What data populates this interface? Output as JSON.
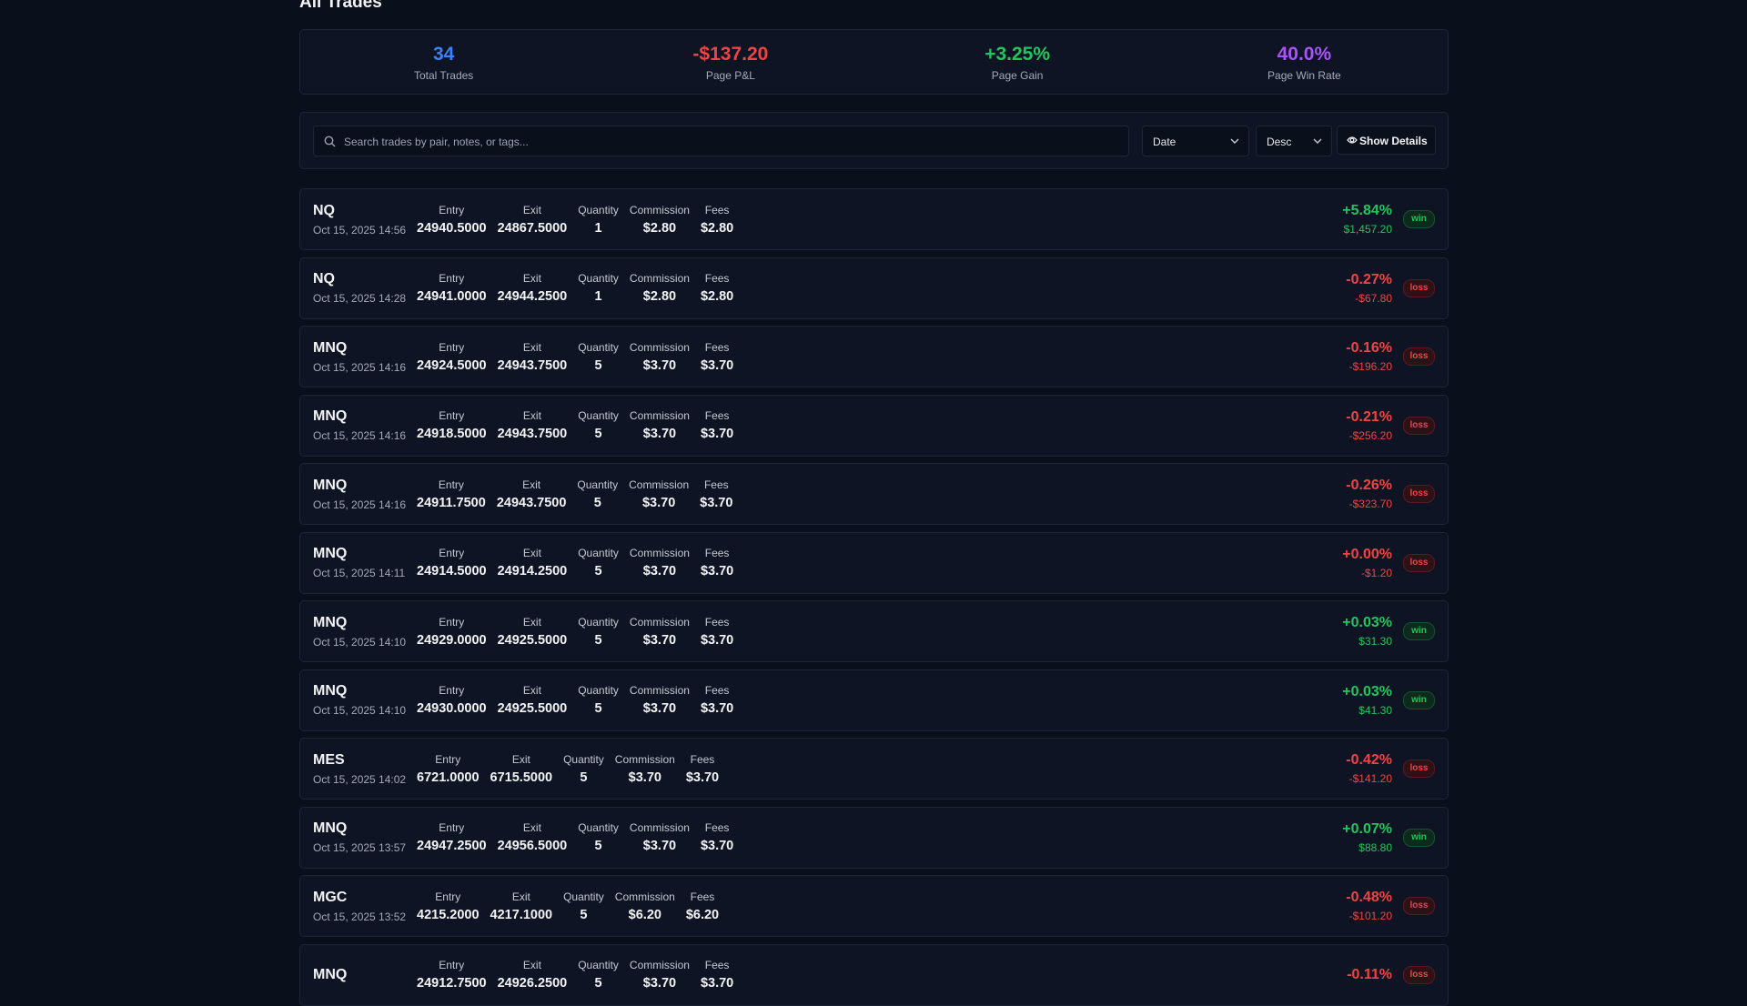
{
  "header": {
    "title": "All Trades"
  },
  "stats": [
    {
      "value": "34",
      "label": "Total Trades"
    },
    {
      "value": "-$137.20",
      "label": "Page P&L"
    },
    {
      "value": "+3.25%",
      "label": "Page Gain"
    },
    {
      "value": "40.0%",
      "label": "Page Win Rate"
    }
  ],
  "toolbar": {
    "search_placeholder": "Search trades by pair, notes, or tags...",
    "sort_field": "Date",
    "sort_order": "Desc",
    "details_button": "Show Details"
  },
  "columns": {
    "entry": "Entry",
    "exit": "Exit",
    "quantity": "Quantity",
    "commission": "Commission",
    "fees": "Fees"
  },
  "trades": [
    {
      "symbol": "NQ",
      "date": "Oct 15, 2025 14:56",
      "entry": "24940.5000",
      "exit": "24867.5000",
      "quantity": "1",
      "commission": "$2.80",
      "fees": "$2.80",
      "pct": "+5.84%",
      "pnl": "$1,457.20",
      "result": "win"
    },
    {
      "symbol": "NQ",
      "date": "Oct 15, 2025 14:28",
      "entry": "24941.0000",
      "exit": "24944.2500",
      "quantity": "1",
      "commission": "$2.80",
      "fees": "$2.80",
      "pct": "-0.27%",
      "pnl": "-$67.80",
      "result": "loss"
    },
    {
      "symbol": "MNQ",
      "date": "Oct 15, 2025 14:16",
      "entry": "24924.5000",
      "exit": "24943.7500",
      "quantity": "5",
      "commission": "$3.70",
      "fees": "$3.70",
      "pct": "-0.16%",
      "pnl": "-$196.20",
      "result": "loss"
    },
    {
      "symbol": "MNQ",
      "date": "Oct 15, 2025 14:16",
      "entry": "24918.5000",
      "exit": "24943.7500",
      "quantity": "5",
      "commission": "$3.70",
      "fees": "$3.70",
      "pct": "-0.21%",
      "pnl": "-$256.20",
      "result": "loss"
    },
    {
      "symbol": "MNQ",
      "date": "Oct 15, 2025 14:16",
      "entry": "24911.7500",
      "exit": "24943.7500",
      "quantity": "5",
      "commission": "$3.70",
      "fees": "$3.70",
      "pct": "-0.26%",
      "pnl": "-$323.70",
      "result": "loss"
    },
    {
      "symbol": "MNQ",
      "date": "Oct 15, 2025 14:11",
      "entry": "24914.5000",
      "exit": "24914.2500",
      "quantity": "5",
      "commission": "$3.70",
      "fees": "$3.70",
      "pct": "+0.00%",
      "pnl": "-$1.20",
      "result": "loss"
    },
    {
      "symbol": "MNQ",
      "date": "Oct 15, 2025 14:10",
      "entry": "24929.0000",
      "exit": "24925.5000",
      "quantity": "5",
      "commission": "$3.70",
      "fees": "$3.70",
      "pct": "+0.03%",
      "pnl": "$31.30",
      "result": "win"
    },
    {
      "symbol": "MNQ",
      "date": "Oct 15, 2025 14:10",
      "entry": "24930.0000",
      "exit": "24925.5000",
      "quantity": "5",
      "commission": "$3.70",
      "fees": "$3.70",
      "pct": "+0.03%",
      "pnl": "$41.30",
      "result": "win"
    },
    {
      "symbol": "MES",
      "date": "Oct 15, 2025 14:02",
      "entry": "6721.0000",
      "exit": "6715.5000",
      "quantity": "5",
      "commission": "$3.70",
      "fees": "$3.70",
      "pct": "-0.42%",
      "pnl": "-$141.20",
      "result": "loss"
    },
    {
      "symbol": "MNQ",
      "date": "Oct 15, 2025 13:57",
      "entry": "24947.2500",
      "exit": "24956.5000",
      "quantity": "5",
      "commission": "$3.70",
      "fees": "$3.70",
      "pct": "+0.07%",
      "pnl": "$88.80",
      "result": "win"
    },
    {
      "symbol": "MGC",
      "date": "Oct 15, 2025 13:52",
      "entry": "4215.2000",
      "exit": "4217.1000",
      "quantity": "5",
      "commission": "$6.20",
      "fees": "$6.20",
      "pct": "-0.48%",
      "pnl": "-$101.20",
      "result": "loss"
    },
    {
      "symbol": "MNQ",
      "entry": "24912.7500",
      "exit": "24926.2500",
      "quantity": "5",
      "commission": "$3.70",
      "fees": "$3.70",
      "pct": "-0.11%",
      "result": "loss"
    }
  ]
}
